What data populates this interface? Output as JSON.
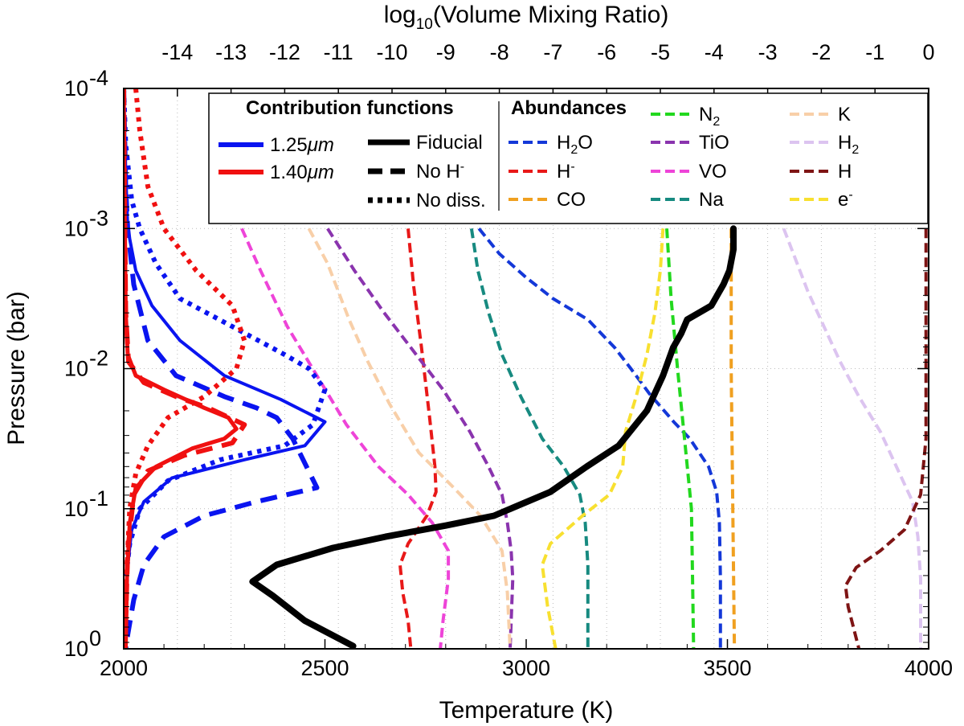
{
  "chart_data": {
    "type": "line",
    "x_axis": {
      "label": "Temperature (K)",
      "range": [
        2000,
        4000
      ],
      "ticks": [
        "2000",
        "2500",
        "3000",
        "3500",
        "4000"
      ]
    },
    "x2_axis": {
      "label_prefix": "log",
      "label_sub": "10",
      "label_suffix": "(Volume Mixing Ratio)",
      "range": [
        -15,
        0
      ],
      "ticks": [
        "-14",
        "-13",
        "-12",
        "-11",
        "-10",
        "-9",
        "-8",
        "-7",
        "-6",
        "-5",
        "-4",
        "-3",
        "-2",
        "-1",
        "0"
      ]
    },
    "y_axis": {
      "label": "Pressure (bar)",
      "scale": "log",
      "range_log10": [
        0,
        -4
      ],
      "ticks": [
        {
          "base": "10",
          "exp": "-4"
        },
        {
          "base": "10",
          "exp": "-3"
        },
        {
          "base": "10",
          "exp": "-2"
        },
        {
          "base": "10",
          "exp": "-1"
        },
        {
          "base": "10",
          "exp": "0"
        }
      ]
    },
    "legend": {
      "contribution_title": "Contribution functions",
      "abundance_title": "Abundances",
      "cf_colors": [
        {
          "label": "1.25",
          "unit": "μm",
          "color": "#0a14f0"
        },
        {
          "label": "1.40",
          "unit": "μm",
          "color": "#f01010"
        }
      ],
      "line_styles": [
        {
          "label": "Fiducial",
          "dash": "solid"
        },
        {
          "label": "No H",
          "sup": "-",
          "dash": "dashed"
        },
        {
          "label": "No diss.",
          "dash": "dotted"
        }
      ]
    },
    "temperature_profile": {
      "name": "Fiducial",
      "color": "#000000",
      "points": [
        [
          3515,
          -3
        ],
        [
          3515,
          -2.85
        ],
        [
          3505,
          -2.7
        ],
        [
          3490,
          -2.6
        ],
        [
          3460,
          -2.45
        ],
        [
          3400,
          -2.35
        ],
        [
          3385,
          -2.25
        ],
        [
          3365,
          -2.15
        ],
        [
          3340,
          -1.95
        ],
        [
          3300,
          -1.7
        ],
        [
          3230,
          -1.45
        ],
        [
          3150,
          -1.3
        ],
        [
          3060,
          -1.12
        ],
        [
          2920,
          -0.95
        ],
        [
          2800,
          -0.88
        ],
        [
          2650,
          -0.8
        ],
        [
          2520,
          -0.72
        ],
        [
          2380,
          -0.6
        ],
        [
          2320,
          -0.48
        ],
        [
          2370,
          -0.38
        ],
        [
          2450,
          -0.2
        ],
        [
          2570,
          -0.02
        ]
      ]
    },
    "contribution_functions": [
      {
        "name": "1.25μm Fiducial",
        "color": "#0a14f0",
        "dash": "solid",
        "width": 4,
        "points": [
          [
            2000,
            -4
          ],
          [
            2005,
            -3.4
          ],
          [
            2010,
            -3
          ],
          [
            2030,
            -2.7
          ],
          [
            2070,
            -2.45
          ],
          [
            2140,
            -2.2
          ],
          [
            2250,
            -1.95
          ],
          [
            2390,
            -1.78
          ],
          [
            2500,
            -1.62
          ],
          [
            2450,
            -1.45
          ],
          [
            2300,
            -1.35
          ],
          [
            2120,
            -1.22
          ],
          [
            2050,
            -1.05
          ],
          [
            2020,
            -0.85
          ],
          [
            2010,
            -0.6
          ],
          [
            2005,
            -0.3
          ],
          [
            2003,
            0
          ]
        ]
      },
      {
        "name": "1.25μm No H-",
        "color": "#0a14f0",
        "dash": "dashed",
        "width": 6,
        "points": [
          [
            2000,
            -4
          ],
          [
            2005,
            -3.3
          ],
          [
            2010,
            -3
          ],
          [
            2025,
            -2.6
          ],
          [
            2060,
            -2.2
          ],
          [
            2130,
            -1.95
          ],
          [
            2250,
            -1.8
          ],
          [
            2330,
            -1.72
          ],
          [
            2380,
            -1.65
          ],
          [
            2420,
            -1.5
          ],
          [
            2480,
            -1.15
          ],
          [
            2330,
            -1.05
          ],
          [
            2200,
            -0.95
          ],
          [
            2100,
            -0.8
          ],
          [
            2050,
            -0.6
          ],
          [
            2025,
            -0.35
          ],
          [
            2010,
            -0.1
          ],
          [
            2005,
            0
          ]
        ]
      },
      {
        "name": "1.25μm No diss.",
        "color": "#0a14f0",
        "dash": "dotted",
        "width": 6,
        "points": [
          [
            2000,
            -4
          ],
          [
            2005,
            -3.6
          ],
          [
            2020,
            -3.2
          ],
          [
            2040,
            -3
          ],
          [
            2080,
            -2.75
          ],
          [
            2140,
            -2.5
          ],
          [
            2270,
            -2.3
          ],
          [
            2400,
            -2.1
          ],
          [
            2460,
            -2
          ],
          [
            2500,
            -1.85
          ],
          [
            2470,
            -1.6
          ],
          [
            2400,
            -1.45
          ],
          [
            2240,
            -1.35
          ],
          [
            2110,
            -1.2
          ],
          [
            2040,
            -1
          ],
          [
            2015,
            -0.75
          ],
          [
            2005,
            -0.5
          ],
          [
            2002,
            0
          ]
        ]
      },
      {
        "name": "1.40μm Fiducial",
        "color": "#f01010",
        "dash": "solid",
        "width": 5,
        "points": [
          [
            2000,
            -4
          ],
          [
            2002,
            -3.3
          ],
          [
            2005,
            -2.4
          ],
          [
            2010,
            -2.1
          ],
          [
            2030,
            -1.95
          ],
          [
            2100,
            -1.85
          ],
          [
            2200,
            -1.72
          ],
          [
            2260,
            -1.65
          ],
          [
            2280,
            -1.57
          ],
          [
            2250,
            -1.5
          ],
          [
            2170,
            -1.43
          ],
          [
            2080,
            -1.3
          ],
          [
            2030,
            -1.15
          ],
          [
            2015,
            -0.9
          ],
          [
            2008,
            -0.5
          ],
          [
            2005,
            0
          ]
        ]
      },
      {
        "name": "1.40μm No H-",
        "color": "#f01010",
        "dash": "dashed",
        "width": 6,
        "points": [
          [
            2000,
            -4
          ],
          [
            2002,
            -3.3
          ],
          [
            2005,
            -2.4
          ],
          [
            2012,
            -2.05
          ],
          [
            2050,
            -1.9
          ],
          [
            2130,
            -1.8
          ],
          [
            2210,
            -1.72
          ],
          [
            2300,
            -1.6
          ],
          [
            2270,
            -1.47
          ],
          [
            2150,
            -1.38
          ],
          [
            2060,
            -1.27
          ],
          [
            2025,
            -1.1
          ],
          [
            2010,
            -0.7
          ],
          [
            2005,
            -0.2
          ],
          [
            2003,
            0
          ]
        ]
      },
      {
        "name": "1.40μm No diss.",
        "color": "#f01010",
        "dash": "dotted",
        "width": 6,
        "points": [
          [
            2030,
            -4
          ],
          [
            2040,
            -3.7
          ],
          [
            2060,
            -3.3
          ],
          [
            2100,
            -3
          ],
          [
            2180,
            -2.7
          ],
          [
            2270,
            -2.45
          ],
          [
            2300,
            -2.2
          ],
          [
            2280,
            -2
          ],
          [
            2200,
            -1.8
          ],
          [
            2110,
            -1.65
          ],
          [
            2060,
            -1.45
          ],
          [
            2030,
            -1.25
          ],
          [
            2015,
            -1
          ],
          [
            2008,
            -0.6
          ],
          [
            2005,
            -0.2
          ],
          [
            2003,
            0
          ]
        ]
      }
    ],
    "abundances": [
      {
        "name": "H2O",
        "label": "H",
        "sub": "2",
        "tail": "O",
        "color": "#1438d8",
        "points": [
          [
            -8.38,
            -3
          ],
          [
            -8,
            -2.82
          ],
          [
            -7.5,
            -2.65
          ],
          [
            -7,
            -2.5
          ],
          [
            -6.35,
            -2.35
          ],
          [
            -5.85,
            -2.15
          ],
          [
            -5.55,
            -2
          ],
          [
            -5.2,
            -1.82
          ],
          [
            -4.75,
            -1.62
          ],
          [
            -4.45,
            -1.5
          ],
          [
            -4.1,
            -1.3
          ],
          [
            -3.95,
            -1.12
          ],
          [
            -3.9,
            -0.9
          ],
          [
            -3.88,
            -0.5
          ],
          [
            -3.88,
            0
          ]
        ]
      },
      {
        "name": "H-",
        "label": "H",
        "sup": "-",
        "color": "#e81818",
        "points": [
          [
            -9.7,
            -3
          ],
          [
            -9.6,
            -2.6
          ],
          [
            -9.45,
            -2.15
          ],
          [
            -9.3,
            -1.65
          ],
          [
            -9.2,
            -1.3
          ],
          [
            -9.18,
            -1.12
          ],
          [
            -9.35,
            -0.95
          ],
          [
            -9.7,
            -0.75
          ],
          [
            -9.85,
            -0.6
          ],
          [
            -9.8,
            -0.4
          ],
          [
            -9.7,
            -0.2
          ],
          [
            -9.65,
            0
          ]
        ]
      },
      {
        "name": "CO",
        "label": "CO",
        "color": "#f0a020",
        "points": [
          [
            -3.68,
            -3
          ],
          [
            -3.68,
            -2
          ],
          [
            -3.65,
            -1
          ],
          [
            -3.62,
            0
          ]
        ]
      },
      {
        "name": "N2",
        "label": "N",
        "sub": "2",
        "color": "#22d81e",
        "points": [
          [
            -4.88,
            -3
          ],
          [
            -4.8,
            -2.5
          ],
          [
            -4.68,
            -2
          ],
          [
            -4.55,
            -1.5
          ],
          [
            -4.42,
            -1
          ],
          [
            -4.4,
            -0.5
          ],
          [
            -4.38,
            0
          ]
        ]
      },
      {
        "name": "TiO",
        "label": "TiO",
        "color": "#8a34ae",
        "points": [
          [
            -11.2,
            -3
          ],
          [
            -10.7,
            -2.7
          ],
          [
            -10.15,
            -2.4
          ],
          [
            -9.55,
            -2.1
          ],
          [
            -9.05,
            -1.85
          ],
          [
            -8.55,
            -1.55
          ],
          [
            -8.2,
            -1.3
          ],
          [
            -7.95,
            -1.1
          ],
          [
            -7.85,
            -0.9
          ],
          [
            -7.78,
            -0.7
          ],
          [
            -7.75,
            -0.5
          ],
          [
            -7.8,
            0
          ]
        ]
      },
      {
        "name": "VO",
        "label": "VO",
        "color": "#ee44d8",
        "points": [
          [
            -12.8,
            -3
          ],
          [
            -12.45,
            -2.7
          ],
          [
            -11.95,
            -2.3
          ],
          [
            -11.4,
            -1.95
          ],
          [
            -10.85,
            -1.6
          ],
          [
            -10.25,
            -1.3
          ],
          [
            -9.7,
            -1.1
          ],
          [
            -9.25,
            -0.9
          ],
          [
            -8.95,
            -0.7
          ],
          [
            -8.95,
            -0.5
          ],
          [
            -9.05,
            -0.2
          ],
          [
            -9.1,
            0
          ]
        ]
      },
      {
        "name": "Na",
        "label": "Na",
        "color": "#178a80",
        "points": [
          [
            -8.52,
            -3
          ],
          [
            -8.4,
            -2.7
          ],
          [
            -8.2,
            -2.4
          ],
          [
            -7.95,
            -2.1
          ],
          [
            -7.6,
            -1.8
          ],
          [
            -7.2,
            -1.5
          ],
          [
            -6.8,
            -1.3
          ],
          [
            -6.5,
            -1.1
          ],
          [
            -6.4,
            -0.9
          ],
          [
            -6.35,
            -0.6
          ],
          [
            -6.35,
            0
          ]
        ]
      },
      {
        "name": "K",
        "label": "K",
        "color": "#f8cfa8",
        "points": [
          [
            -11.55,
            -3
          ],
          [
            -11.2,
            -2.75
          ],
          [
            -10.8,
            -2.35
          ],
          [
            -10.45,
            -2.05
          ],
          [
            -10.05,
            -1.75
          ],
          [
            -9.5,
            -1.4
          ],
          [
            -8.85,
            -1.15
          ],
          [
            -8.35,
            -0.95
          ],
          [
            -7.95,
            -0.7
          ],
          [
            -7.85,
            -0.4
          ],
          [
            -7.8,
            0
          ]
        ]
      },
      {
        "name": "H2",
        "label": "H",
        "sub": "2",
        "color": "#dcc4f0",
        "points": [
          [
            -2.7,
            -3
          ],
          [
            -2.5,
            -2.8
          ],
          [
            -2.25,
            -2.55
          ],
          [
            -1.95,
            -2.3
          ],
          [
            -1.65,
            -2.05
          ],
          [
            -1.3,
            -1.8
          ],
          [
            -0.9,
            -1.55
          ],
          [
            -0.6,
            -1.3
          ],
          [
            -0.3,
            -1.05
          ],
          [
            -0.2,
            -0.8
          ],
          [
            -0.15,
            -0.5
          ],
          [
            -0.15,
            0
          ]
        ]
      },
      {
        "name": "H",
        "label": "H",
        "color": "#7e1414",
        "points": [
          [
            -0.05,
            -3
          ],
          [
            -0.05,
            -1.5
          ],
          [
            -0.15,
            -1.1
          ],
          [
            -0.45,
            -0.85
          ],
          [
            -0.9,
            -0.7
          ],
          [
            -1.35,
            -0.58
          ],
          [
            -1.55,
            -0.45
          ],
          [
            -1.5,
            -0.3
          ],
          [
            -1.4,
            -0.15
          ],
          [
            -1.3,
            0
          ]
        ]
      },
      {
        "name": "e-",
        "label": "e",
        "sup": "-",
        "color": "#f8e030",
        "points": [
          [
            -4.95,
            -3
          ],
          [
            -5,
            -2.7
          ],
          [
            -5.1,
            -2.4
          ],
          [
            -5.25,
            -2.1
          ],
          [
            -5.45,
            -1.8
          ],
          [
            -5.65,
            -1.55
          ],
          [
            -5.7,
            -1.3
          ],
          [
            -5.95,
            -1.1
          ],
          [
            -6.45,
            -0.95
          ],
          [
            -7.05,
            -0.75
          ],
          [
            -7.2,
            -0.6
          ],
          [
            -7.1,
            -0.3
          ],
          [
            -6.95,
            0
          ]
        ]
      }
    ]
  }
}
